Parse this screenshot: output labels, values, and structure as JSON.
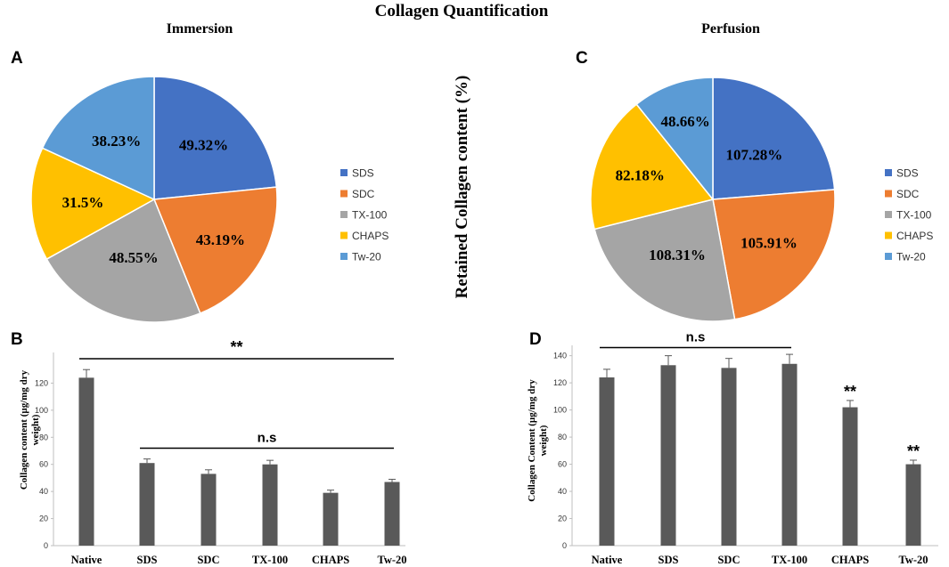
{
  "figure": {
    "title": "Collagen Quantification",
    "center_ylabel": "Retained Collagen content (%)"
  },
  "colors": {
    "SDS": "#4472c4",
    "SDC": "#ed7d31",
    "TX-100": "#a5a5a5",
    "CHAPS": "#ffc000",
    "Tw-20": "#5b9bd5",
    "bar": "#595959",
    "line": "#000000"
  },
  "chart_data": [
    {
      "panel": "A",
      "type": "pie",
      "title": "Immersion",
      "categories": [
        "SDS",
        "SDC",
        "TX-100",
        "CHAPS",
        "Tw-20"
      ],
      "values": [
        49.32,
        43.19,
        48.55,
        31.5,
        38.23
      ],
      "labels": [
        "49.32%",
        "43.19%",
        "48.55%",
        "31.5%",
        "38.23%"
      ],
      "legend": "right"
    },
    {
      "panel": "C",
      "type": "pie",
      "title": "Perfusion",
      "categories": [
        "SDS",
        "SDC",
        "TX-100",
        "CHAPS",
        "Tw-20"
      ],
      "values": [
        107.28,
        105.91,
        108.31,
        82.18,
        48.66
      ],
      "labels": [
        "107.28%",
        "105.91%",
        "108.31%",
        "82.18%",
        "48.66%"
      ],
      "legend": "right"
    },
    {
      "panel": "B",
      "type": "bar",
      "title": "",
      "categories": [
        "Native",
        "SDS",
        "SDC",
        "TX-100",
        "CHAPS",
        "Tw-20"
      ],
      "values": [
        124,
        61,
        53,
        60,
        39,
        47
      ],
      "errors": [
        6,
        3,
        3,
        3,
        2,
        2
      ],
      "ylabel": "Collagen content (µg/mg dry weight)",
      "ylim": [
        0,
        140
      ],
      "yticks": [
        0,
        20,
        40,
        60,
        80,
        100,
        120
      ],
      "annotations": [
        {
          "text": "**",
          "from": "Native",
          "to": "Tw-20",
          "at": 138
        },
        {
          "text": "n.s",
          "from": "SDS",
          "to": "Tw-20",
          "at": 72
        }
      ],
      "bar_marks": []
    },
    {
      "panel": "D",
      "type": "bar",
      "title": "",
      "categories": [
        "Native",
        "SDS",
        "SDC",
        "TX-100",
        "CHAPS",
        "Tw-20"
      ],
      "values": [
        124,
        133,
        131,
        134,
        102,
        60
      ],
      "errors": [
        6,
        7,
        7,
        7,
        5,
        3
      ],
      "ylabel": "Collagen Content (µg/mg dry weight)",
      "ylim": [
        0,
        145
      ],
      "yticks": [
        0,
        20,
        40,
        60,
        80,
        100,
        120,
        140
      ],
      "annotations": [
        {
          "text": "n.s",
          "from": "Native",
          "to": "TX-100",
          "at": 146
        }
      ],
      "bar_marks": [
        {
          "category": "CHAPS",
          "text": "**"
        },
        {
          "category": "Tw-20",
          "text": "**"
        }
      ]
    }
  ]
}
